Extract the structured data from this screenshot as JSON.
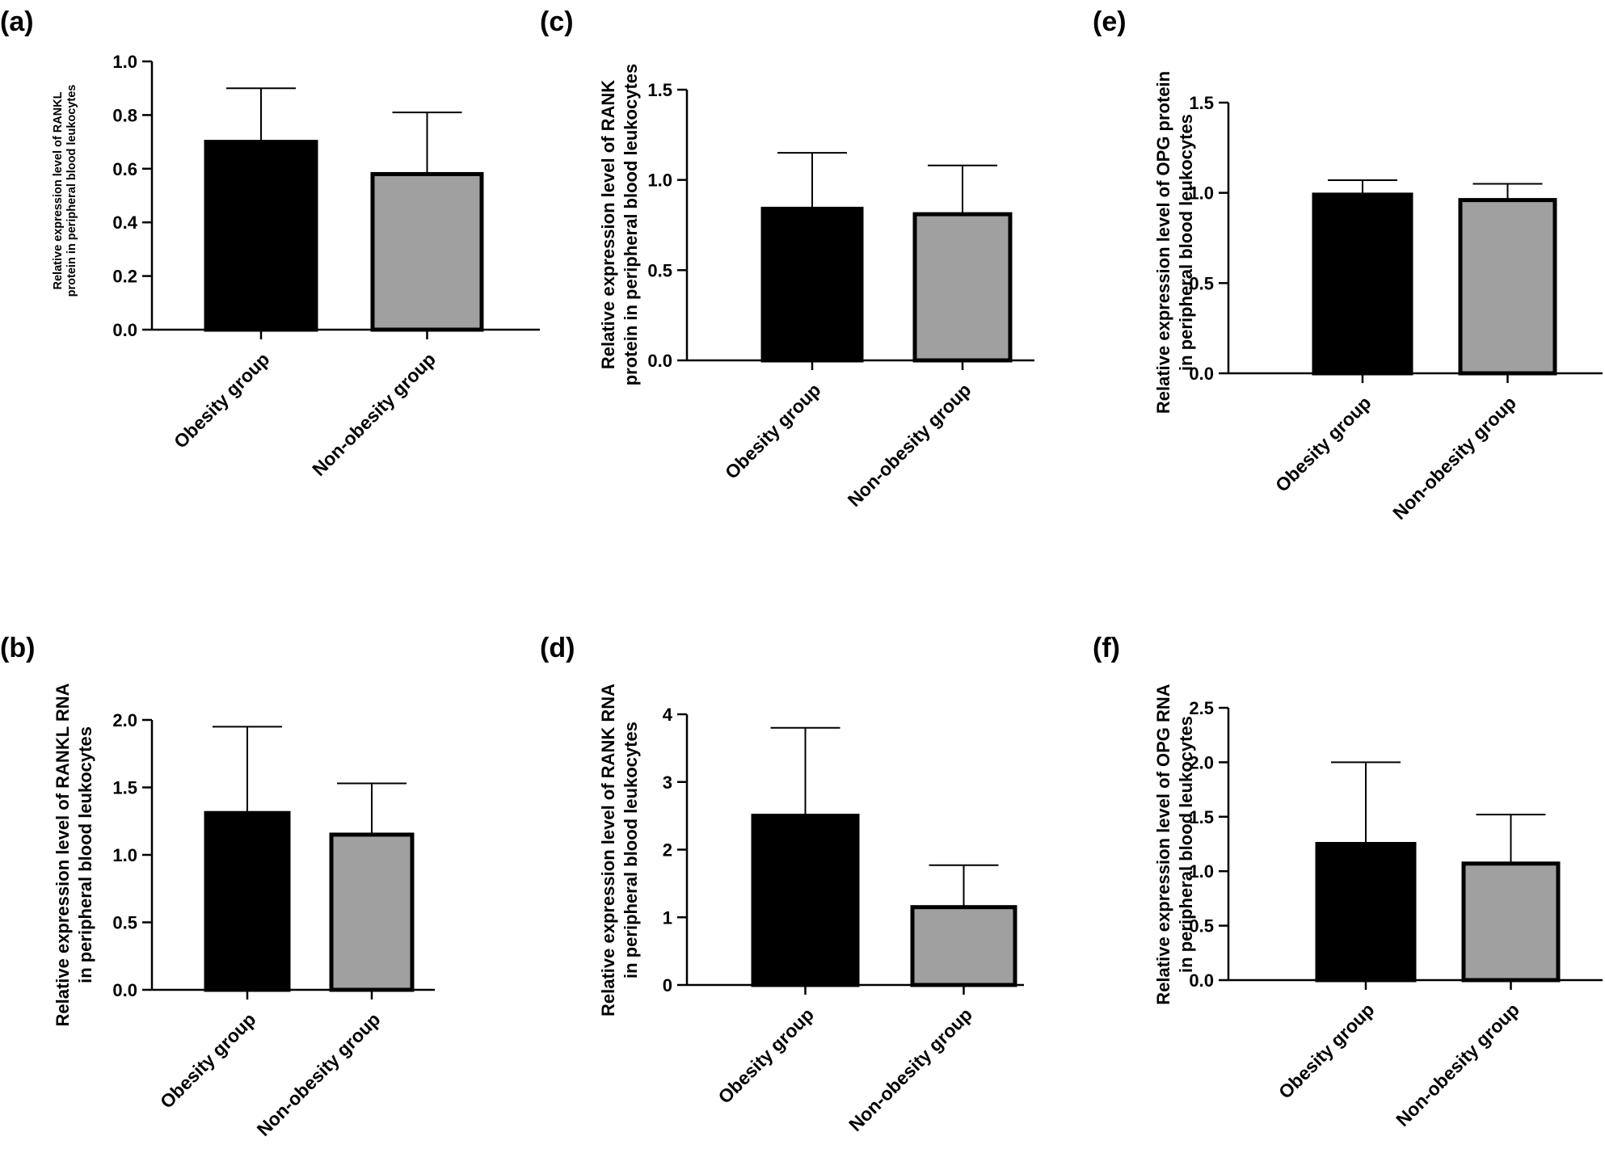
{
  "chart_data": [
    {
      "id": "a",
      "type": "bar",
      "panel_label": "(a)",
      "ylabel_lines": [
        "Relative expression level of RANKL",
        "protein in peripheral blood leukocytes"
      ],
      "categories": [
        "Obesity group",
        "Non-obesity group"
      ],
      "values": [
        0.7,
        0.58
      ],
      "error_upper": [
        0.9,
        0.81
      ],
      "colors": [
        "#000000",
        "#a0a0a0"
      ],
      "ylim": [
        0,
        1.0
      ],
      "yticks": [
        0.0,
        0.2,
        0.4,
        0.6,
        0.8,
        1.0
      ],
      "ytick_labels": [
        "0.0",
        "0.2",
        "0.4",
        "0.6",
        "0.8",
        "1.0"
      ]
    },
    {
      "id": "b",
      "type": "bar",
      "panel_label": "(b)",
      "ylabel_lines": [
        "Relative expression level of RANKL RNA",
        "in peripheral blood leukocytes"
      ],
      "categories": [
        "Obesity group",
        "Non-obesity group"
      ],
      "values": [
        1.31,
        1.15
      ],
      "error_upper": [
        1.95,
        1.53
      ],
      "colors": [
        "#000000",
        "#a0a0a0"
      ],
      "ylim": [
        0,
        2.0
      ],
      "yticks": [
        0.0,
        0.5,
        1.0,
        1.5,
        2.0
      ],
      "ytick_labels": [
        "0.0",
        "0.5",
        "1.0",
        "1.5",
        "2.0"
      ]
    },
    {
      "id": "c",
      "type": "bar",
      "panel_label": "(c)",
      "ylabel_lines": [
        "Relative expression level of RANK",
        "protein in peripheral blood leukocytes"
      ],
      "categories": [
        "Obesity group",
        "Non-obesity group"
      ],
      "values": [
        0.84,
        0.81
      ],
      "error_upper": [
        1.15,
        1.08
      ],
      "colors": [
        "#000000",
        "#a0a0a0"
      ],
      "ylim": [
        0,
        1.5
      ],
      "yticks": [
        0.0,
        0.5,
        1.0,
        1.5
      ],
      "ytick_labels": [
        "0.0",
        "0.5",
        "1.0",
        "1.5"
      ]
    },
    {
      "id": "d",
      "type": "bar",
      "panel_label": "(d)",
      "ylabel_lines": [
        "Relative expression level of RANK RNA",
        "in peripheral blood leukocytes"
      ],
      "categories": [
        "Obesity group",
        "Non-obesity group"
      ],
      "values": [
        2.5,
        1.15
      ],
      "error_upper": [
        3.8,
        1.77
      ],
      "colors": [
        "#000000",
        "#a0a0a0"
      ],
      "ylim": [
        0,
        4
      ],
      "yticks": [
        0,
        1,
        2,
        3,
        4
      ],
      "ytick_labels": [
        "0",
        "1",
        "2",
        "3",
        "4"
      ]
    },
    {
      "id": "e",
      "type": "bar",
      "panel_label": "(e)",
      "ylabel_lines": [
        "Relative expression level of OPG protein",
        "in peripheral blood leukocytes"
      ],
      "categories": [
        "Obesity group",
        "Non-obesity group"
      ],
      "values": [
        0.99,
        0.96
      ],
      "error_upper": [
        1.07,
        1.05
      ],
      "colors": [
        "#000000",
        "#a0a0a0"
      ],
      "ylim": [
        0,
        1.5
      ],
      "yticks": [
        0.0,
        0.5,
        1.0,
        1.5
      ],
      "ytick_labels": [
        "0.0",
        "0.5",
        "1.0",
        "1.5"
      ]
    },
    {
      "id": "f",
      "type": "bar",
      "panel_label": "(f)",
      "ylabel_lines": [
        "Relative expression level of OPG RNA",
        "in peripheral blood leukocytes"
      ],
      "categories": [
        "Obesity group",
        "Non-obesity group"
      ],
      "values": [
        1.25,
        1.07
      ],
      "error_upper": [
        2.0,
        1.52
      ],
      "colors": [
        "#000000",
        "#a0a0a0"
      ],
      "ylim": [
        0,
        2.5
      ],
      "yticks": [
        0.0,
        0.5,
        1.0,
        1.5,
        2.0,
        2.5
      ],
      "ytick_labels": [
        "0.0",
        "0.5",
        "1.0",
        "1.5",
        "2.0",
        "2.5"
      ]
    }
  ]
}
